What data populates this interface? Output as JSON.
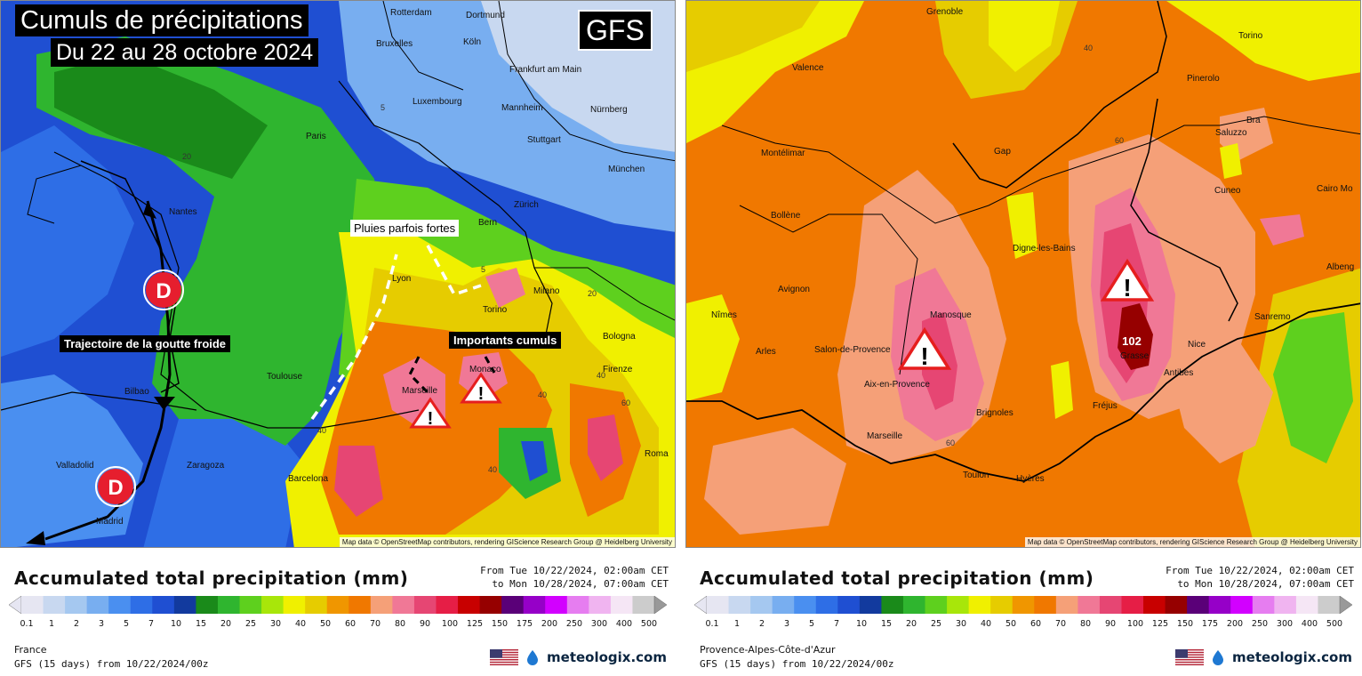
{
  "left": {
    "title_line1": "Cumuls de précipitations",
    "title_line2": "Du 22 au 28 octobre 2024",
    "model_badge": "GFS",
    "annotations": {
      "rain": "Pluies parfois fortes",
      "cumuls": "Importants cumuls",
      "trajectory": "Trajectoire de la goutte froide",
      "low_marker": "D"
    },
    "cities": [
      "Rotterdam",
      "Dortmund",
      "Köln",
      "Bruxelles",
      "Frankfurt am Main",
      "Luxembourg",
      "Mannheim",
      "Nürnberg",
      "Stuttgart",
      "Paris",
      "München",
      "Nantes",
      "Bern",
      "Zürich",
      "Lyon",
      "Milano",
      "Torino",
      "Bologna",
      "Toulouse",
      "Monaco",
      "Marseille",
      "Firenze",
      "Bilbao",
      "Roma",
      "Zaragoza",
      "Barcelona",
      "Valladolid",
      "Madrid"
    ],
    "contour_labels": [
      "5",
      "20",
      "40",
      "40",
      "60",
      "20",
      "40",
      "40",
      "5"
    ],
    "attribution": "Map data © OpenStreetMap contributors, rendering GIScience Research Group @ Heidelberg University",
    "legend_title": "Accumulated total precipitation (mm)",
    "period_from": "From Tue 10/22/2024, 02:00am CET",
    "period_to": "to Mon 10/28/2024, 07:00am CET",
    "region": "France",
    "model_run": "GFS (15 days) from 10/22/2024/00z",
    "brand": "meteologix.com"
  },
  "right": {
    "peak_value": "102",
    "cities": [
      "Grenoble",
      "Torino",
      "Valence",
      "Pinerolo",
      "Montélimar",
      "Gap",
      "Saluzzo",
      "Bra",
      "Cuneo",
      "Cairo Mo",
      "Bollène",
      "Digne-les-Bains",
      "Avignon",
      "Nîmes",
      "Manosque",
      "Albeng",
      "Sanremo",
      "Arles",
      "Salon-de-Provence",
      "Nice",
      "Aix-en-Provence",
      "Grasse",
      "Antibes",
      "Brignoles",
      "Fréjus",
      "Marseille",
      "Toulon",
      "Hyères"
    ],
    "contour_labels": [
      "40",
      "60",
      "60"
    ],
    "attribution": "Map data © OpenStreetMap contributors, rendering GIScience Research Group @ Heidelberg University",
    "legend_title": "Accumulated total precipitation (mm)",
    "period_from": "From Tue 10/22/2024, 02:00am CET",
    "period_to": "to Mon 10/28/2024, 07:00am CET",
    "region": "Provence-Alpes-Côte-d'Azur",
    "model_run": "GFS (15 days) from 10/22/2024/00z",
    "brand": "meteologix.com"
  },
  "scale": {
    "ticks": [
      "0.1",
      "1",
      "2",
      "3",
      "5",
      "7",
      "10",
      "15",
      "20",
      "25",
      "30",
      "40",
      "50",
      "60",
      "70",
      "80",
      "90",
      "100",
      "125",
      "150",
      "175",
      "200",
      "250",
      "300",
      "400",
      "500"
    ],
    "colors": [
      "#e6e6f2",
      "#c8d8f0",
      "#a5c8f0",
      "#78aef0",
      "#4a8ff0",
      "#2e6ee6",
      "#1f4fd2",
      "#123a9e",
      "#1a8a1a",
      "#2fb52f",
      "#5ed01e",
      "#a8e60a",
      "#f0f000",
      "#e6cc00",
      "#f09600",
      "#f07800",
      "#f5a078",
      "#f07896",
      "#e64673",
      "#e61e46",
      "#c80000",
      "#960000",
      "#5a0078",
      "#9600c8",
      "#d200ff",
      "#e67df0",
      "#f0b4f0",
      "#f5e6f5",
      "#cccccc"
    ]
  }
}
